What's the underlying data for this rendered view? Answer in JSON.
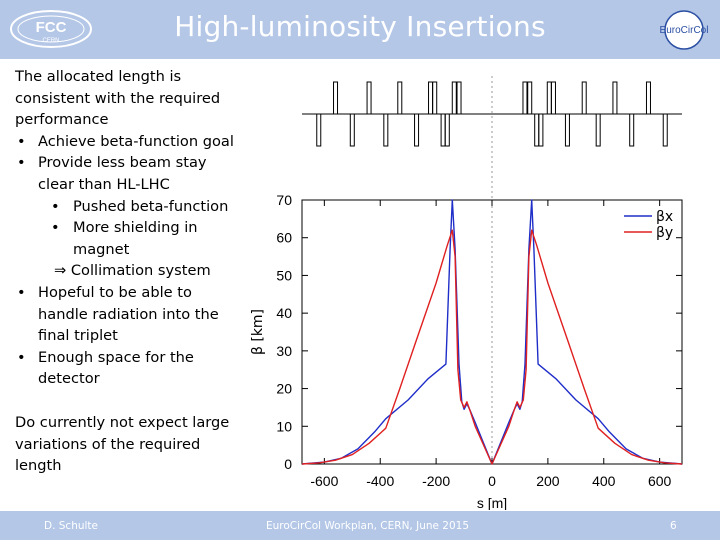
{
  "slide": {
    "title": "High-luminosity Insertions",
    "logo_left_text": "FCC",
    "logo_left_subtext": "CERN",
    "logo_right_text": "EuroCirCol"
  },
  "text": {
    "intro_lines": [
      "The allocated length is",
      "consistent with the required",
      "performance"
    ],
    "bullet1": "Achieve beta-function goal",
    "bullet2_lines": [
      "Provide less beam stay",
      "clear than HL-LHC"
    ],
    "sub1": "Pushed beta-function",
    "sub2_lines": [
      "More shielding in",
      "magnet"
    ],
    "implies": "⇒ Collimation system",
    "bullet3_lines": [
      "Hopeful to be able to",
      "handle radiation into the",
      "final triplet"
    ],
    "bullet4_lines": [
      "Enough space for the",
      "detector"
    ],
    "note_lines": [
      "Do currently not expect large",
      "variations of the required",
      "length"
    ]
  },
  "footer": {
    "author": "D. Schulte",
    "event": "EuroCirCol Workplan, CERN, June 2015",
    "page": "6"
  },
  "colors": {
    "header": "#b4c7e7",
    "beta_x": "#1f2ec8",
    "beta_y": "#e02020"
  },
  "chart_data": {
    "type": "line",
    "xlabel": "s [m]",
    "ylabel": "β [km]",
    "xlim": [
      -680,
      680
    ],
    "ylim": [
      0,
      70
    ],
    "xticks": [
      -600,
      -400,
      -200,
      0,
      200,
      400,
      600
    ],
    "yticks": [
      0,
      10,
      20,
      30,
      40,
      50,
      60,
      70
    ],
    "legend_position": "top-right",
    "grid": false,
    "series": [
      {
        "name": "βx",
        "color": "#1f2ec8",
        "x": [
          -680,
          -600,
          -540,
          -480,
          -420,
          -380,
          -300,
          -230,
          -165,
          -150,
          -142,
          -132,
          -118,
          -108,
          -100,
          -90,
          -80,
          -60,
          -30,
          0,
          30,
          60,
          80,
          90,
          100,
          108,
          118,
          132,
          142,
          150,
          165,
          230,
          300,
          380,
          420,
          480,
          540,
          600,
          680
        ],
        "y": [
          0,
          0.5,
          1.5,
          4,
          8.5,
          12,
          17,
          22.5,
          26.5,
          57,
          70,
          57,
          26.5,
          16.5,
          14.5,
          16,
          14.5,
          11,
          5.5,
          0,
          5.5,
          11,
          14.5,
          16,
          14.5,
          16.5,
          26.5,
          57,
          70,
          57,
          26.5,
          22.5,
          17,
          12,
          8.5,
          4,
          1.5,
          0.5,
          0
        ]
      },
      {
        "name": "βy",
        "color": "#e02020",
        "x": [
          -680,
          -620,
          -560,
          -500,
          -440,
          -380,
          -330,
          -270,
          -200,
          -160,
          -142,
          -132,
          -122,
          -112,
          -100,
          -90,
          -80,
          -60,
          -30,
          0,
          30,
          60,
          80,
          90,
          100,
          112,
          122,
          132,
          142,
          160,
          200,
          270,
          330,
          380,
          440,
          500,
          560,
          620,
          680
        ],
        "y": [
          0,
          0.3,
          1,
          2.5,
          5.5,
          9.5,
          20,
          33,
          48,
          58,
          62,
          55,
          25,
          17,
          15,
          16.5,
          14.5,
          10,
          5,
          0,
          5,
          10,
          14.5,
          16.5,
          15,
          17,
          25,
          55,
          62,
          58,
          48,
          33,
          20,
          9.5,
          5.5,
          2.5,
          1,
          0.3,
          0
        ]
      }
    ]
  }
}
